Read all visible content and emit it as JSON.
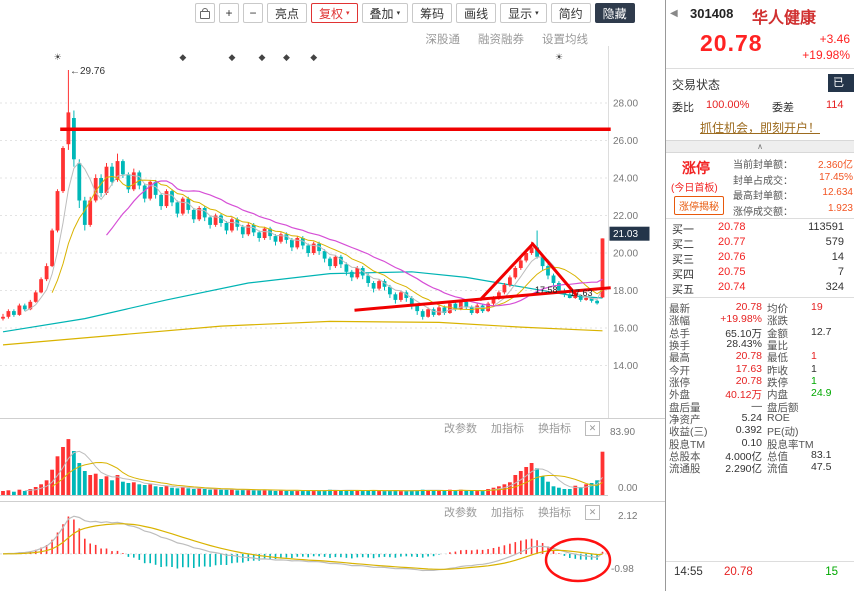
{
  "icons": {
    "back": "◀",
    "dropdown": "▾",
    "close": "✕",
    "collapse": "∧"
  },
  "toolbar": {
    "zoom_in": "+",
    "zoom_out": "−",
    "highlight": "亮点",
    "fuquan": "复权",
    "overlay": "叠加",
    "chips": "筹码",
    "draw_line": "画线",
    "display": "显示",
    "simple": "简约",
    "hide": "隐藏",
    "subbar": [
      "深股通",
      "融资融券",
      "设置均线"
    ]
  },
  "stock": {
    "code": "301408",
    "name": "华人健康",
    "price": "20.78",
    "change": "+3.46",
    "change_pct": "+19.98%"
  },
  "status": {
    "label": "交易状态",
    "badge": "已"
  },
  "weibi": {
    "label": "委比",
    "value": "100.00%",
    "label2": "委差",
    "value2": "114"
  },
  "ad": {
    "text": "抓住机会，即刻开户！"
  },
  "limit_up": {
    "title": "涨停",
    "subtitle": "(今日首板)",
    "badge": "涨停揭秘",
    "rows": [
      {
        "label": "当前封单额：",
        "value": "2.360亿"
      },
      {
        "label": "封单占成交：",
        "value": "17.45%"
      },
      {
        "label": "最高封单额：",
        "value": "12.634"
      },
      {
        "label": "涨停成交额：",
        "value": "1.923"
      }
    ]
  },
  "order_book": [
    {
      "label": "买一",
      "price": "20.78",
      "vol": "113591"
    },
    {
      "label": "买二",
      "price": "20.77",
      "vol": "579"
    },
    {
      "label": "买三",
      "price": "20.76",
      "vol": "14"
    },
    {
      "label": "买四",
      "price": "20.75",
      "vol": "7"
    },
    {
      "label": "买五",
      "price": "20.74",
      "vol": "324"
    }
  ],
  "stats": [
    {
      "l1": "最新",
      "v1": "20.78",
      "c1": "red",
      "l2": "均价",
      "v2": "19",
      "c2": "red"
    },
    {
      "l1": "涨幅",
      "v1": "+19.98%",
      "c1": "red",
      "l2": "涨跌",
      "v2": "",
      "c2": "dark"
    },
    {
      "l1": "总手",
      "v1": "65.10万",
      "c1": "dark",
      "l2": "金额",
      "v2": "12.7",
      "c2": "dark"
    },
    {
      "l1": "换手",
      "v1": "28.43%",
      "c1": "dark",
      "l2": "量比",
      "v2": "",
      "c2": "dark"
    },
    {
      "l1": "最高",
      "v1": "20.78",
      "c1": "red",
      "l2": "最低",
      "v2": "1",
      "c2": "red"
    },
    {
      "l1": "今开",
      "v1": "17.63",
      "c1": "red",
      "l2": "昨收",
      "v2": "1",
      "c2": "dark"
    },
    {
      "l1": "涨停",
      "v1": "20.78",
      "c1": "red",
      "l2": "跌停",
      "v2": "1",
      "c2": "green"
    },
    {
      "l1": "外盘",
      "v1": "40.12万",
      "c1": "red",
      "l2": "内盘",
      "v2": "24.9",
      "c2": "green"
    },
    {
      "l1": "盘后量",
      "v1": "—",
      "c1": "dark",
      "l2": "盘后额",
      "v2": "",
      "c2": "dark"
    },
    {
      "l1": "净资产",
      "v1": "5.24",
      "c1": "dark",
      "l2": "ROE",
      "v2": "",
      "c2": "dark"
    },
    {
      "l1": "收益(三)",
      "v1": "0.392",
      "c1": "dark",
      "l2": "PE(动)",
      "v2": "",
      "c2": "dark"
    },
    {
      "l1": "股息TM",
      "v1": "0.10",
      "c1": "dark",
      "l2": "股息率TM",
      "v2": "",
      "c2": "dark"
    },
    {
      "l1": "总股本",
      "v1": "4.000亿",
      "c1": "dark",
      "l2": "总值",
      "v2": "83.1",
      "c2": "dark"
    },
    {
      "l1": "流通股",
      "v1": "2.290亿",
      "c1": "dark",
      "l2": "流值",
      "v2": "47.5",
      "c2": "dark"
    }
  ],
  "tick": {
    "time": "14:55",
    "price": "20.78",
    "vol": "15"
  },
  "chart_data": {
    "type": "candlestick",
    "y_axis": [
      "28.00",
      "26.00",
      "24.00",
      "22.00",
      "20.00",
      "18.00",
      "16.00",
      "14.00"
    ],
    "price_tag": "21.03",
    "high_label": "←29.76",
    "low_labels": [
      "17.58",
      "17.63"
    ],
    "pane_head": [
      "改参数",
      "加指标",
      "换指标"
    ],
    "vol_axis": [
      "83.90",
      "0.00"
    ],
    "macd_axis": [
      "2.12",
      "-0.98"
    ],
    "colors": {
      "up": "#ff3333",
      "down": "#00b8b8",
      "ma5": "#bdbdbd",
      "ma10": "#d9b300",
      "ma20": "#d64fd6",
      "extra_cyan": "#00b4b4",
      "drawing": "#f00000"
    },
    "markers": [
      {
        "day": 10,
        "sym": "☀"
      },
      {
        "day": 33,
        "sym": "◆"
      },
      {
        "day": 42,
        "sym": "◆"
      },
      {
        "day": 47.5,
        "sym": "◆"
      },
      {
        "day": 52,
        "sym": "◆"
      },
      {
        "day": 57,
        "sym": "◆"
      },
      {
        "day": 102,
        "sym": "☀"
      }
    ],
    "overlays": {
      "cyan_ma": [
        [
          0,
          15.8
        ],
        [
          15,
          16.5
        ],
        [
          30,
          17.5
        ],
        [
          45,
          18.4
        ],
        [
          60,
          18.9
        ],
        [
          75,
          19.0
        ],
        [
          85,
          18.7
        ],
        [
          95,
          18.2
        ],
        [
          105,
          17.7
        ],
        [
          110,
          17.6
        ]
      ],
      "yellow_long": [
        [
          0,
          15.1
        ],
        [
          20,
          15.6
        ],
        [
          40,
          16.1
        ],
        [
          60,
          16.35
        ],
        [
          80,
          16.3
        ],
        [
          95,
          16.05
        ],
        [
          110,
          15.85
        ]
      ],
      "hline": {
        "price": 26.6,
        "from_day": 10.5,
        "to_day": 111.5
      },
      "trend": [
        [
          64.5,
          16.95
        ],
        [
          111.5,
          18.15
        ]
      ],
      "zigzag": [
        [
          87.5,
          17.49
        ],
        [
          97.2,
          20.48
        ],
        [
          105.3,
          17.71
        ]
      ],
      "macd_circle_day": 105.5
    },
    "kline": [
      [
        16.5,
        16.6,
        16.4,
        16.75,
        6
      ],
      [
        16.6,
        16.9,
        16.5,
        17.0,
        7
      ],
      [
        16.9,
        16.7,
        16.6,
        17.0,
        5
      ],
      [
        16.7,
        17.2,
        16.65,
        17.3,
        8
      ],
      [
        17.2,
        17.0,
        16.9,
        17.3,
        6
      ],
      [
        17.0,
        17.4,
        16.95,
        17.5,
        9
      ],
      [
        17.4,
        17.9,
        17.35,
        18.0,
        12
      ],
      [
        17.9,
        18.6,
        17.85,
        18.7,
        16
      ],
      [
        18.6,
        19.3,
        18.5,
        19.45,
        22
      ],
      [
        19.3,
        21.2,
        19.25,
        21.3,
        38
      ],
      [
        21.2,
        23.3,
        21.1,
        23.4,
        58
      ],
      [
        23.3,
        25.6,
        23.2,
        25.7,
        72
      ],
      [
        25.8,
        27.5,
        25.5,
        29.76,
        83.9
      ],
      [
        27.2,
        25.0,
        24.6,
        27.6,
        66
      ],
      [
        24.8,
        22.8,
        22.4,
        25.0,
        48
      ],
      [
        22.8,
        21.5,
        21.2,
        23.0,
        36
      ],
      [
        21.5,
        22.8,
        21.4,
        23.0,
        30
      ],
      [
        22.8,
        24.0,
        22.7,
        24.2,
        32
      ],
      [
        24.0,
        23.2,
        23.0,
        24.2,
        24
      ],
      [
        23.2,
        24.6,
        23.1,
        24.8,
        28
      ],
      [
        24.6,
        23.8,
        23.6,
        24.8,
        22
      ],
      [
        23.9,
        24.9,
        23.8,
        25.3,
        30
      ],
      [
        24.9,
        24.2,
        24.0,
        25.0,
        20
      ],
      [
        24.2,
        23.4,
        23.2,
        24.3,
        18
      ],
      [
        23.4,
        24.3,
        23.3,
        24.5,
        19
      ],
      [
        24.3,
        23.6,
        23.4,
        24.4,
        16
      ],
      [
        23.6,
        22.9,
        22.7,
        23.7,
        15
      ],
      [
        22.9,
        23.8,
        22.8,
        23.9,
        16
      ],
      [
        23.8,
        23.1,
        22.9,
        23.9,
        13
      ],
      [
        23.1,
        22.5,
        22.3,
        23.2,
        12
      ],
      [
        22.5,
        23.3,
        22.4,
        23.4,
        14
      ],
      [
        23.3,
        22.7,
        22.5,
        23.4,
        11
      ],
      [
        22.7,
        22.1,
        21.9,
        22.8,
        10
      ],
      [
        22.1,
        22.9,
        22.0,
        23.0,
        12
      ],
      [
        22.9,
        22.3,
        22.1,
        23.0,
        10
      ],
      [
        22.3,
        21.8,
        21.6,
        22.4,
        9
      ],
      [
        21.8,
        22.4,
        21.7,
        22.5,
        10
      ],
      [
        22.4,
        21.9,
        21.7,
        22.5,
        9
      ],
      [
        21.9,
        21.5,
        21.3,
        22.0,
        8
      ],
      [
        21.5,
        22.0,
        21.4,
        22.1,
        9
      ],
      [
        22.0,
        21.6,
        21.4,
        22.1,
        8
      ],
      [
        21.6,
        21.2,
        21.0,
        21.7,
        8
      ],
      [
        21.2,
        21.8,
        21.1,
        21.9,
        9
      ],
      [
        21.8,
        21.4,
        21.2,
        21.9,
        7
      ],
      [
        21.4,
        21.0,
        20.8,
        21.5,
        8
      ],
      [
        21.0,
        21.5,
        20.9,
        21.6,
        8
      ],
      [
        21.5,
        21.1,
        20.9,
        21.6,
        7
      ],
      [
        21.1,
        20.8,
        20.6,
        21.2,
        7
      ],
      [
        20.8,
        21.3,
        20.7,
        21.4,
        8
      ],
      [
        21.3,
        20.9,
        20.7,
        21.4,
        7
      ],
      [
        20.9,
        20.6,
        20.4,
        21.0,
        6
      ],
      [
        20.6,
        21.0,
        20.5,
        21.1,
        7
      ],
      [
        21.0,
        20.7,
        20.5,
        21.1,
        6
      ],
      [
        20.7,
        20.3,
        20.1,
        20.8,
        7
      ],
      [
        20.3,
        20.8,
        20.2,
        20.9,
        7
      ],
      [
        20.8,
        20.4,
        20.2,
        20.9,
        6
      ],
      [
        20.4,
        20.0,
        19.8,
        20.5,
        7
      ],
      [
        20.0,
        20.5,
        19.9,
        20.6,
        7
      ],
      [
        20.5,
        20.1,
        19.9,
        20.6,
        6
      ],
      [
        20.1,
        19.7,
        19.5,
        20.2,
        7
      ],
      [
        19.7,
        19.3,
        19.1,
        19.8,
        8
      ],
      [
        19.3,
        19.8,
        19.2,
        19.9,
        7
      ],
      [
        19.8,
        19.4,
        19.2,
        19.9,
        6
      ],
      [
        19.4,
        19.0,
        18.8,
        19.5,
        7
      ],
      [
        19.0,
        18.7,
        18.5,
        19.1,
        7
      ],
      [
        18.7,
        19.2,
        18.6,
        19.3,
        7
      ],
      [
        19.2,
        18.8,
        18.6,
        19.3,
        6
      ],
      [
        18.8,
        18.4,
        18.2,
        18.9,
        7
      ],
      [
        18.4,
        18.1,
        17.9,
        18.5,
        7
      ],
      [
        18.1,
        18.5,
        18.0,
        18.6,
        6
      ],
      [
        18.5,
        18.2,
        18.0,
        18.6,
        6
      ],
      [
        18.2,
        17.8,
        17.6,
        18.3,
        7
      ],
      [
        17.8,
        17.5,
        17.3,
        17.9,
        7
      ],
      [
        17.5,
        17.9,
        17.4,
        18.0,
        6
      ],
      [
        17.9,
        17.6,
        17.4,
        18.0,
        6
      ],
      [
        17.6,
        17.2,
        17.0,
        17.7,
        7
      ],
      [
        17.2,
        16.9,
        16.7,
        17.3,
        7
      ],
      [
        16.9,
        16.6,
        16.45,
        17.0,
        8
      ],
      [
        16.6,
        17.0,
        16.55,
        17.1,
        7
      ],
      [
        17.0,
        16.7,
        16.6,
        17.1,
        6
      ],
      [
        16.7,
        17.1,
        16.65,
        17.2,
        7
      ],
      [
        17.1,
        16.8,
        16.7,
        17.2,
        6
      ],
      [
        16.8,
        17.3,
        16.75,
        17.4,
        8
      ],
      [
        17.3,
        17.0,
        16.9,
        17.4,
        6
      ],
      [
        17.0,
        17.4,
        16.95,
        17.5,
        8
      ],
      [
        17.4,
        17.1,
        17.0,
        17.5,
        6
      ],
      [
        17.1,
        16.8,
        16.7,
        17.2,
        6
      ],
      [
        16.8,
        17.2,
        16.75,
        17.3,
        7
      ],
      [
        17.2,
        16.9,
        16.8,
        17.3,
        6
      ],
      [
        16.9,
        17.3,
        16.85,
        17.4,
        9
      ],
      [
        17.3,
        17.6,
        17.2,
        17.7,
        11
      ],
      [
        17.6,
        17.9,
        17.5,
        18.0,
        13
      ],
      [
        17.9,
        18.3,
        17.8,
        18.4,
        16
      ],
      [
        18.3,
        18.7,
        18.2,
        18.8,
        19
      ],
      [
        18.7,
        19.2,
        18.6,
        19.3,
        30
      ],
      [
        19.2,
        19.6,
        19.1,
        19.75,
        36
      ],
      [
        19.6,
        20.0,
        19.5,
        20.15,
        42
      ],
      [
        20.0,
        20.3,
        19.9,
        20.6,
        48
      ],
      [
        20.3,
        19.8,
        19.7,
        21.2,
        40
      ],
      [
        19.8,
        19.3,
        19.1,
        19.9,
        28
      ],
      [
        19.3,
        18.8,
        18.6,
        19.4,
        20
      ],
      [
        18.8,
        18.4,
        18.2,
        18.9,
        13
      ],
      [
        18.4,
        18.0,
        17.9,
        18.5,
        11
      ],
      [
        18.0,
        17.8,
        17.65,
        18.1,
        9
      ],
      [
        17.8,
        17.6,
        17.58,
        17.9,
        9
      ],
      [
        17.6,
        17.75,
        17.55,
        17.85,
        14
      ],
      [
        17.75,
        17.5,
        17.4,
        17.8,
        12
      ],
      [
        17.5,
        17.6,
        17.45,
        17.7,
        16
      ],
      [
        17.6,
        17.45,
        17.35,
        17.65,
        18
      ],
      [
        17.45,
        17.32,
        17.25,
        17.5,
        22
      ],
      [
        17.63,
        20.78,
        17.6,
        20.78,
        65
      ]
    ]
  }
}
